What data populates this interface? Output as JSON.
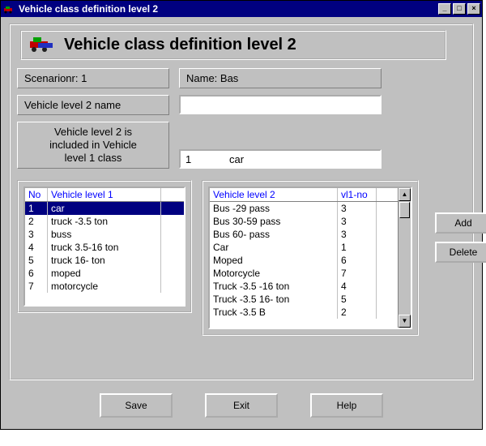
{
  "window": {
    "title": "Vehicle class definition level 2",
    "controls": {
      "min": "_",
      "max": "□",
      "close": "×"
    }
  },
  "header": {
    "title": "Vehicle class definition level 2",
    "icon_name": "vehicle-icon"
  },
  "fields": {
    "scenario_label": "Scenarionr: 1",
    "name_label": "Name: Bas",
    "level2_name_label": "Vehicle level 2 name",
    "level2_name_value": "",
    "inclusion_label_line1": "Vehicle level 2 is",
    "inclusion_label_line2": "included in Vehicle",
    "inclusion_label_line3": "level 1 class",
    "level1_selected_no": "1",
    "level1_selected_name": "car"
  },
  "list_level1": {
    "headers": {
      "no": "No",
      "name": "Vehicle level 1"
    },
    "col_widths": {
      "no": 28,
      "name": 140
    },
    "rows": [
      {
        "no": "1",
        "name": "car",
        "selected": true
      },
      {
        "no": "2",
        "name": "truck -3.5 ton"
      },
      {
        "no": "3",
        "name": "buss"
      },
      {
        "no": "4",
        "name": "truck 3.5-16 ton"
      },
      {
        "no": "5",
        "name": "truck 16- ton"
      },
      {
        "no": "6",
        "name": "moped"
      },
      {
        "no": "7",
        "name": "motorcycle"
      }
    ]
  },
  "list_level2": {
    "headers": {
      "name": "Vehicle level 2",
      "vl1": "vl1-no"
    },
    "col_widths": {
      "name": 158,
      "vl1": 48
    },
    "rows": [
      {
        "name": "Bus -29 pass",
        "vl1": "3"
      },
      {
        "name": "Bus 30-59 pass",
        "vl1": "3"
      },
      {
        "name": "Bus 60- pass",
        "vl1": "3"
      },
      {
        "name": "Car",
        "vl1": "1"
      },
      {
        "name": "Moped",
        "vl1": "6"
      },
      {
        "name": "Motorcycle",
        "vl1": "7"
      },
      {
        "name": "Truck -3.5  -16 ton",
        "vl1": "4"
      },
      {
        "name": "Truck -3.5  16- ton",
        "vl1": "5"
      },
      {
        "name": "Truck -3.5  B",
        "vl1": "2"
      }
    ]
  },
  "buttons": {
    "add": "Add",
    "delete": "Delete",
    "save": "Save",
    "exit": "Exit",
    "help": "Help"
  },
  "colors": {
    "titlebar_bg": "#000080",
    "surface": "#c0c0c0",
    "header_text": "#0000ff",
    "selection_bg": "#000080",
    "selection_fg": "#ffffff"
  }
}
